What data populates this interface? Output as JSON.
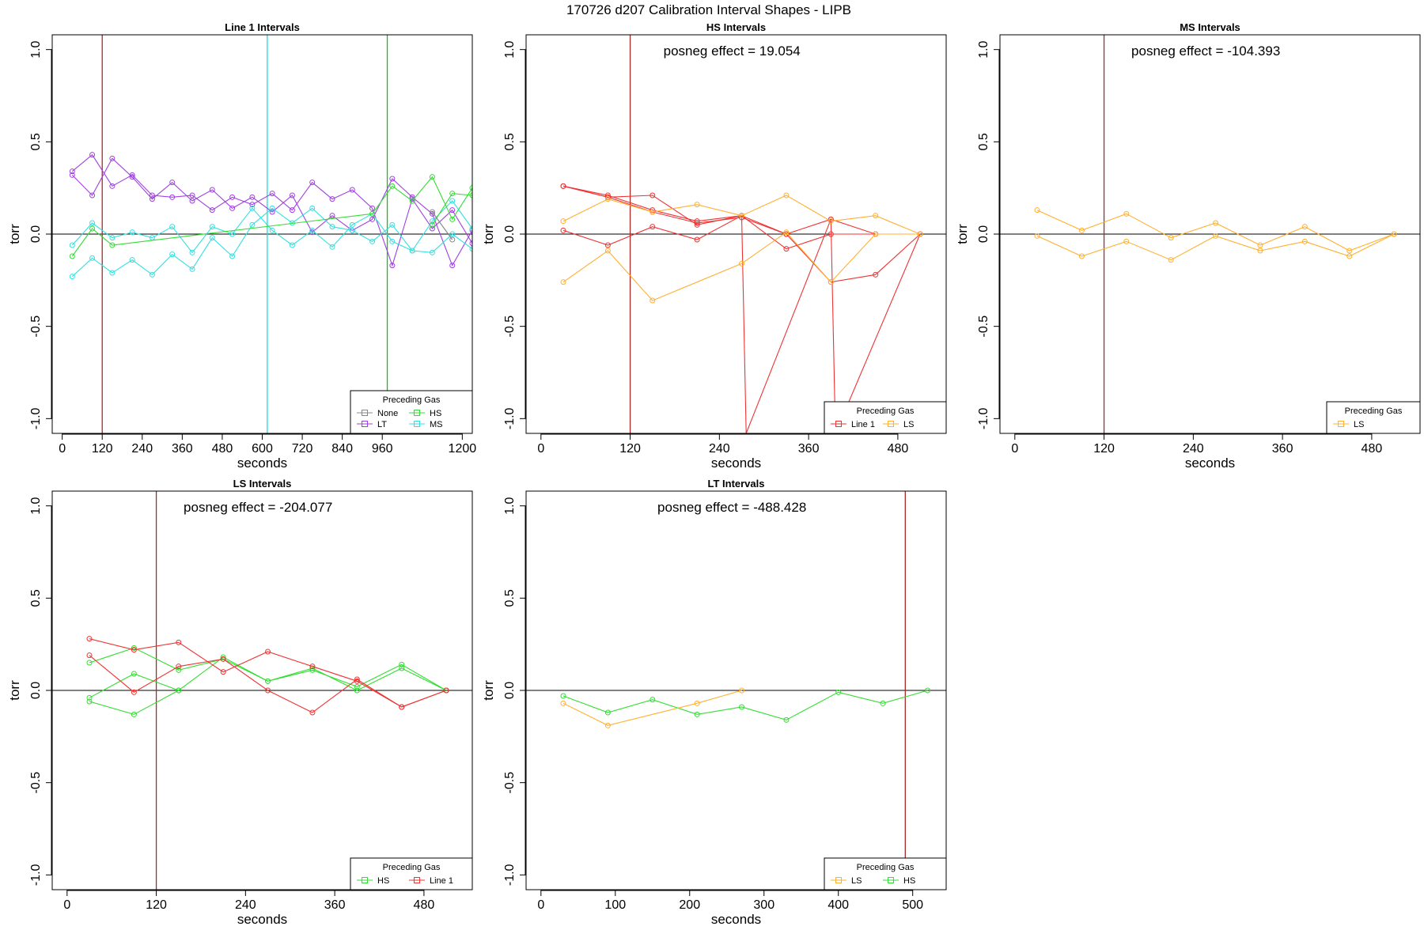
{
  "figure": {
    "title": "170726   d207   Calibration Interval Shapes - LIPB"
  },
  "chart_data": [
    {
      "type": "line",
      "title": "Line 1 Intervals",
      "xlabel": "seconds",
      "ylabel": "torr",
      "xlim": [
        -30,
        1230
      ],
      "ylim": [
        -1.08,
        1.08
      ],
      "xticks": [
        0,
        120,
        240,
        360,
        480,
        600,
        720,
        840,
        960,
        1200
      ],
      "yticks": [
        -1.0,
        -0.5,
        0.0,
        0.5,
        1.0
      ],
      "vlines": [
        {
          "x": 120,
          "color": "#a52a2a"
        },
        {
          "x": 615,
          "color": "#00e5ee"
        },
        {
          "x": 975,
          "color": "#00cc00"
        }
      ],
      "hline": 0,
      "posneg": "",
      "legend": {
        "title": "Preceding Gas",
        "position": "bottom-right",
        "columns": 2,
        "entries": [
          {
            "label": "None",
            "color": "#888888"
          },
          {
            "label": "HS",
            "color": "#33dd33"
          },
          {
            "label": "LT",
            "color": "#a040e0"
          },
          {
            "label": "MS",
            "color": "#33e0e0"
          }
        ]
      },
      "series": [
        {
          "color": "#a040e0",
          "x": [
            30,
            90,
            150,
            210,
            270,
            330,
            390,
            450,
            510,
            570,
            630,
            690,
            750,
            810,
            870,
            930,
            990,
            1050,
            1110,
            1170,
            1230
          ],
          "y": [
            0.34,
            0.43,
            0.26,
            0.32,
            0.21,
            0.2,
            0.21,
            0.13,
            0.2,
            0.16,
            0.22,
            0.13,
            0.28,
            0.19,
            0.24,
            0.14,
            -0.17,
            0.19,
            0.03,
            0.13,
            -0.05
          ]
        },
        {
          "color": "#a040e0",
          "x": [
            30,
            90,
            150,
            210,
            270,
            330,
            390,
            450,
            510,
            570,
            630,
            690,
            750,
            810,
            870,
            930,
            990,
            1050,
            1110,
            1170,
            1230
          ],
          "y": [
            0.32,
            0.21,
            0.41,
            0.31,
            0.19,
            0.28,
            0.18,
            0.24,
            0.14,
            0.2,
            0.12,
            0.21,
            0.01,
            0.1,
            0.02,
            0.08,
            0.3,
            0.2,
            0.11,
            -0.17,
            0.02
          ]
        },
        {
          "color": "#33e0e0",
          "x": [
            30,
            90,
            150,
            210,
            270,
            330,
            390,
            450,
            510,
            570,
            630,
            690,
            750,
            810,
            870,
            930,
            990,
            1050,
            1110,
            1170,
            1230
          ],
          "y": [
            -0.23,
            -0.13,
            -0.21,
            -0.14,
            -0.22,
            -0.11,
            -0.19,
            -0.02,
            -0.12,
            0.05,
            0.14,
            0.06,
            0.14,
            0.04,
            0.02,
            -0.04,
            0.05,
            -0.09,
            0.07,
            0.18,
            0.03
          ]
        },
        {
          "color": "#33e0e0",
          "x": [
            30,
            90,
            150,
            210,
            270,
            330,
            390,
            450,
            510,
            570,
            630,
            690,
            750,
            810,
            870,
            930,
            990,
            1050,
            1110,
            1170,
            1230
          ],
          "y": [
            -0.06,
            0.06,
            -0.02,
            0.01,
            -0.02,
            0.04,
            -0.1,
            0.04,
            0.0,
            0.14,
            0.02,
            -0.06,
            0.02,
            -0.07,
            0.05,
            0.11,
            -0.04,
            -0.09,
            -0.1,
            0.0,
            -0.08
          ]
        },
        {
          "color": "#33dd33",
          "x": [
            30,
            90,
            150,
            930,
            990,
            1050,
            1110,
            1170,
            1230
          ],
          "y": [
            -0.12,
            0.03,
            -0.06,
            0.11,
            0.26,
            0.18,
            0.31,
            0.08,
            0.25
          ]
        },
        {
          "color": "#33dd33",
          "x": [
            1110,
            1170,
            1230
          ],
          "y": [
            0.05,
            0.22,
            0.21
          ]
        },
        {
          "color": "#888888",
          "x": [
            1110,
            1170
          ],
          "y": [
            0.12,
            -0.03
          ]
        }
      ]
    },
    {
      "type": "line",
      "title": "HS Intervals",
      "xlabel": "seconds",
      "ylabel": "torr",
      "xlim": [
        -20,
        545
      ],
      "ylim": [
        -1.08,
        1.08
      ],
      "xticks": [
        0,
        120,
        240,
        360,
        480
      ],
      "yticks": [
        -1.0,
        -0.5,
        0.0,
        0.5,
        1.0
      ],
      "vlines": [
        {
          "x": 120,
          "color": "#a52a2a"
        }
      ],
      "hline": 0,
      "posneg": "posneg effect = 19.054",
      "legend": {
        "title": "Preceding Gas",
        "position": "bottom-right",
        "columns": 2,
        "entries": [
          {
            "label": "Line 1",
            "color": "#ee3333"
          },
          {
            "label": "LS",
            "color": "#ffb030"
          }
        ]
      },
      "series": [
        {
          "color": "#ee3333",
          "x": [
            30,
            90,
            150,
            210,
            270,
            330,
            390,
            450,
            510
          ],
          "y": [
            0.26,
            0.21,
            0.13,
            0.07,
            0.1,
            -0.08,
            0.0,
            0.0,
            0.0
          ]
        },
        {
          "color": "#ee3333",
          "x": [
            30,
            90,
            150,
            210,
            270,
            276,
            390,
            450,
            510
          ],
          "y": [
            0.26,
            0.2,
            0.21,
            0.05,
            0.1,
            -1.08,
            0.08,
            0.0,
            0.0
          ]
        },
        {
          "color": "#ee3333",
          "x": [
            30,
            90,
            150,
            210,
            270,
            330,
            390,
            450,
            510
          ],
          "y": [
            0.02,
            -0.06,
            0.04,
            -0.03,
            0.1,
            0.0,
            -0.26,
            -0.22,
            0.0
          ]
        },
        {
          "color": "#ee3333",
          "x": [
            30,
            90,
            150,
            210,
            270,
            330,
            390,
            396,
            510
          ],
          "y": [
            0.26,
            0.2,
            0.12,
            0.06,
            0.09,
            0.0,
            0.08,
            -1.08,
            0.0
          ]
        },
        {
          "color": "#ffb030",
          "x": [
            30,
            90,
            150,
            210,
            270,
            330,
            390,
            450,
            510
          ],
          "y": [
            0.07,
            0.19,
            0.12,
            0.16,
            0.1,
            0.21,
            0.07,
            0.1,
            0.0
          ]
        },
        {
          "color": "#ffb030",
          "x": [
            30,
            90,
            150,
            270,
            330,
            390,
            450,
            510
          ],
          "y": [
            -0.26,
            -0.09,
            -0.36,
            -0.16,
            0.01,
            -0.26,
            0.0,
            0.0
          ]
        }
      ]
    },
    {
      "type": "line",
      "title": "MS Intervals",
      "xlabel": "seconds",
      "ylabel": "torr",
      "xlim": [
        -20,
        545
      ],
      "ylim": [
        -1.08,
        1.08
      ],
      "xticks": [
        0,
        120,
        240,
        360,
        480
      ],
      "yticks": [
        -1.0,
        -0.5,
        0.0,
        0.5,
        1.0
      ],
      "vlines": [
        {
          "x": 120,
          "color": "#a52a2a"
        }
      ],
      "hline": 0,
      "posneg": "posneg effect = -104.393",
      "legend": {
        "title": "Preceding Gas",
        "position": "bottom-right",
        "columns": 1,
        "entries": [
          {
            "label": "LS",
            "color": "#ffb030"
          }
        ]
      },
      "series": [
        {
          "color": "#ffb030",
          "x": [
            30,
            90,
            150,
            210,
            270,
            330,
            390,
            450,
            510
          ],
          "y": [
            0.13,
            0.02,
            0.11,
            -0.02,
            0.06,
            -0.06,
            0.04,
            -0.09,
            0.0
          ]
        },
        {
          "color": "#ffb030",
          "x": [
            30,
            90,
            150,
            210,
            270,
            330,
            390,
            450,
            510
          ],
          "y": [
            -0.01,
            -0.12,
            -0.04,
            -0.14,
            -0.01,
            -0.09,
            -0.04,
            -0.12,
            0.0
          ]
        }
      ]
    },
    {
      "type": "line",
      "title": "LS Intervals",
      "xlabel": "seconds",
      "ylabel": "torr",
      "xlim": [
        -20,
        545
      ],
      "ylim": [
        -1.08,
        1.08
      ],
      "xticks": [
        0,
        120,
        240,
        360,
        480
      ],
      "yticks": [
        -1.0,
        -0.5,
        0.0,
        0.5,
        1.0
      ],
      "vlines": [
        {
          "x": 120,
          "color": "#a52a2a"
        }
      ],
      "hline": 0,
      "posneg": "posneg effect = -204.077",
      "legend": {
        "title": "Preceding Gas",
        "position": "bottom-right",
        "columns": 2,
        "entries": [
          {
            "label": "HS",
            "color": "#33dd33"
          },
          {
            "label": "Line 1",
            "color": "#ee3333"
          }
        ]
      },
      "series": [
        {
          "color": "#33dd33",
          "x": [
            30,
            90,
            150,
            210,
            270,
            330,
            390,
            450,
            510
          ],
          "y": [
            0.15,
            0.23,
            0.11,
            0.17,
            0.05,
            0.12,
            0.0,
            0.12,
            0.0
          ]
        },
        {
          "color": "#33dd33",
          "x": [
            30,
            90,
            150,
            210,
            270,
            330,
            390,
            450,
            510
          ],
          "y": [
            -0.04,
            0.09,
            0.0,
            0.18,
            0.05,
            0.11,
            0.02,
            0.14,
            0.0
          ]
        },
        {
          "color": "#33dd33",
          "x": [
            30,
            90,
            150
          ],
          "y": [
            -0.06,
            -0.13,
            0.0
          ]
        },
        {
          "color": "#ee3333",
          "x": [
            30,
            90,
            150,
            210,
            270,
            330,
            390,
            450,
            510
          ],
          "y": [
            0.28,
            0.22,
            0.26,
            0.1,
            0.21,
            0.13,
            0.05,
            -0.09,
            0.0
          ]
        },
        {
          "color": "#ee3333",
          "x": [
            30,
            90,
            150,
            210,
            270,
            330,
            390,
            450,
            510
          ],
          "y": [
            0.19,
            -0.01,
            0.13,
            0.17,
            0.0,
            -0.12,
            0.06,
            -0.09,
            0.0
          ]
        }
      ]
    },
    {
      "type": "line",
      "title": "LT Intervals",
      "xlabel": "seconds",
      "ylabel": "torr",
      "xlim": [
        -20,
        545
      ],
      "ylim": [
        -1.08,
        1.08
      ],
      "xticks": [
        0,
        100,
        200,
        300,
        400,
        500
      ],
      "yticks": [
        -1.0,
        -0.5,
        0.0,
        0.5,
        1.0
      ],
      "vlines": [
        {
          "x": 490,
          "color": "#a52a2a"
        }
      ],
      "hline": 0,
      "posneg": "posneg effect = -488.428",
      "legend": {
        "title": "Preceding Gas",
        "position": "bottom-right",
        "columns": 2,
        "entries": [
          {
            "label": "LS",
            "color": "#ffb030"
          },
          {
            "label": "HS",
            "color": "#33dd33"
          }
        ]
      },
      "series": [
        {
          "color": "#33dd33",
          "x": [
            30,
            90,
            150,
            210,
            270,
            330,
            400,
            460,
            520
          ],
          "y": [
            -0.03,
            -0.12,
            -0.05,
            -0.13,
            -0.09,
            -0.16,
            -0.01,
            -0.07,
            0.0
          ]
        },
        {
          "color": "#ffb030",
          "x": [
            30,
            90,
            210,
            270
          ],
          "y": [
            -0.07,
            -0.19,
            -0.07,
            0.0
          ]
        }
      ]
    }
  ]
}
